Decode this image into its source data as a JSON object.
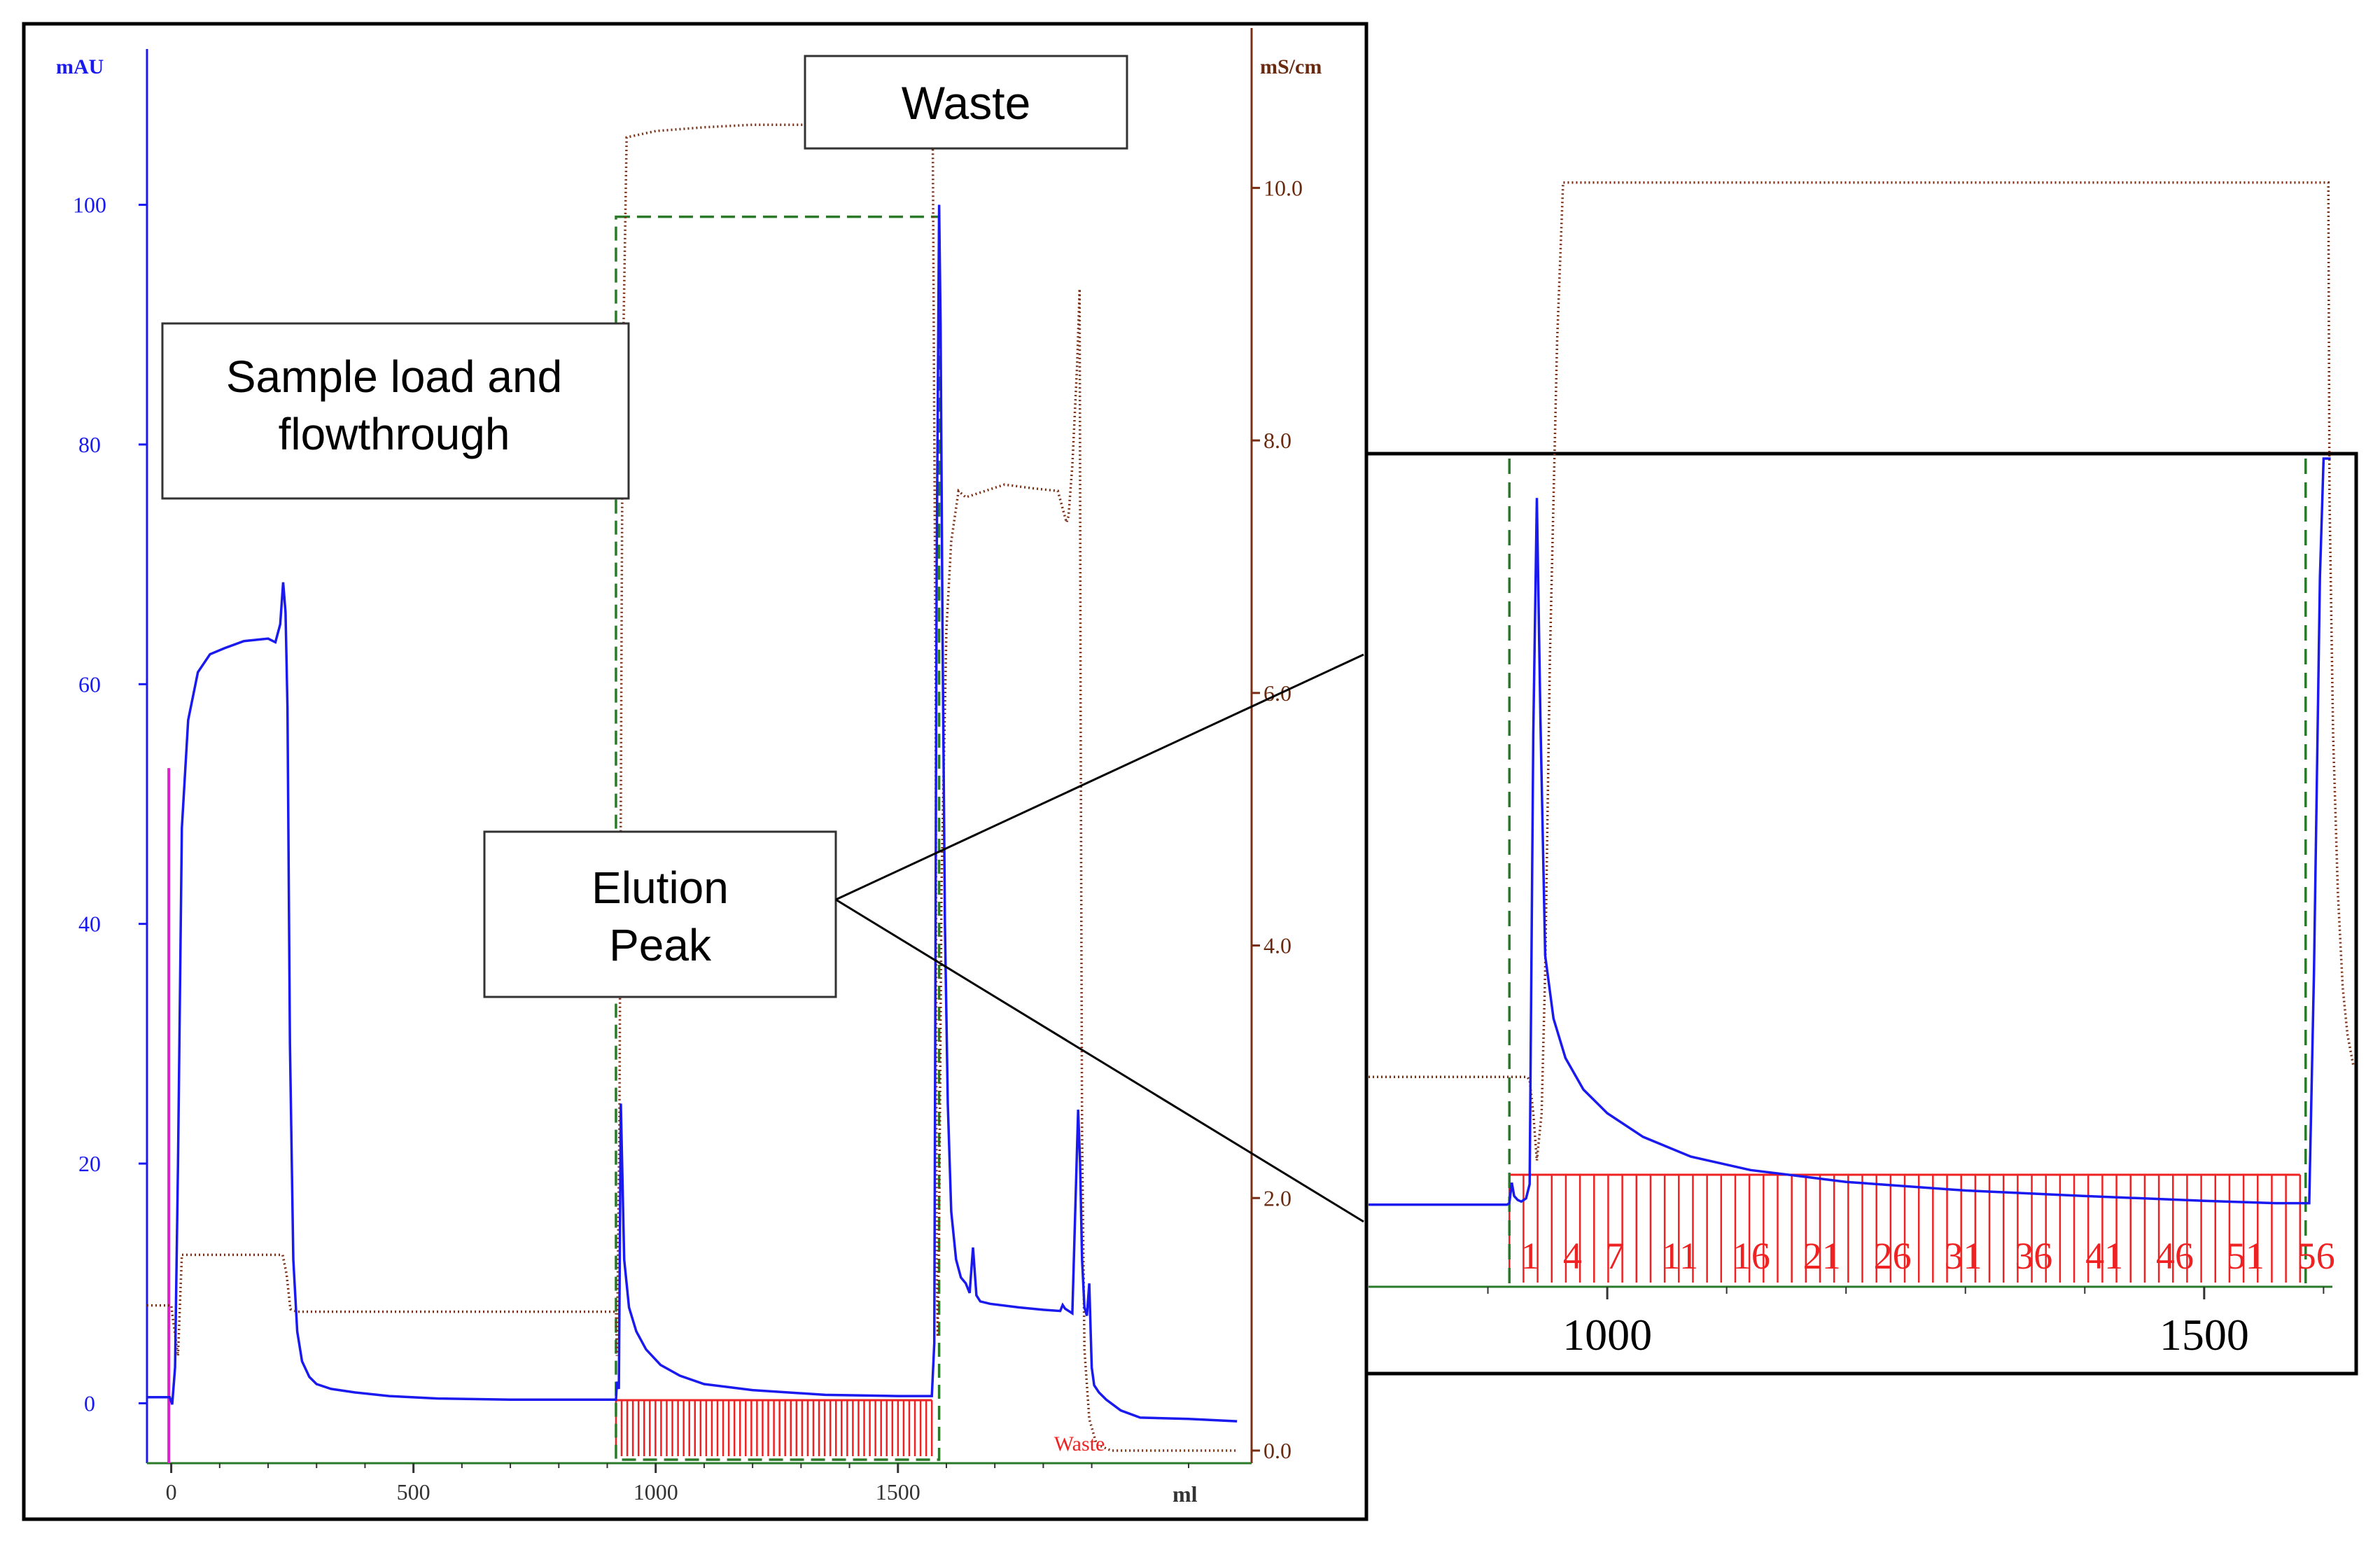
{
  "colors": {
    "uv": "#1a1aee",
    "conductivity": "#7a2e14",
    "fractions": "#ee2222",
    "dashed_box": "#2a7a2a",
    "injection": "#dd22cc",
    "left_axis_text": "#1a1aee",
    "right_axis_text": "#6a2a10"
  },
  "callouts": {
    "waste_top": "Waste",
    "sample_load_line1": "Sample load and",
    "sample_load_line2": "flowthrough",
    "elution_line1": "Elution",
    "elution_line2": "Peak"
  },
  "chart_data": [
    {
      "type": "line",
      "title": "",
      "xlabel": "ml",
      "ylabel": "mAU",
      "y2label": "mS/cm",
      "xlim": [
        -50,
        2230
      ],
      "ylim": [
        -5,
        113
      ],
      "y2lim": [
        -0.1,
        11.1
      ],
      "x_ticks": [
        0,
        500,
        1000,
        1500
      ],
      "y_ticks": [
        0,
        20,
        40,
        60,
        80,
        100
      ],
      "y2_ticks": [
        "0.0",
        "2.0",
        "4.0",
        "6.0",
        "8.0",
        "10.0"
      ],
      "grid": false,
      "series": [
        {
          "axis": "left",
          "x": [
            -50,
            -10,
            -3,
            2,
            8,
            14,
            22,
            35,
            55,
            80,
            110,
            150,
            200,
            215,
            225,
            231,
            236,
            240,
            245,
            252,
            260,
            270,
            285,
            300,
            330,
            380,
            450,
            550,
            700,
            850,
            918,
            920,
            924,
            928,
            935,
            945,
            960,
            980,
            1010,
            1050,
            1100,
            1200,
            1350,
            1500,
            1570,
            1575,
            1580,
            1585,
            1588,
            1592,
            1597,
            1603,
            1610,
            1620,
            1630,
            1640,
            1648,
            1655,
            1662,
            1670,
            1690,
            1750,
            1800,
            1835,
            1840,
            1845,
            1860,
            1872,
            1876,
            1880,
            1885,
            1890,
            1895,
            1900,
            1905,
            1915,
            1930,
            1960,
            2000,
            2100,
            2200
          ],
          "y": [
            0.5,
            0.5,
            0.5,
            -0.1,
            3,
            20,
            48,
            57,
            61,
            62.5,
            63,
            63.6,
            63.8,
            63.5,
            65,
            68.5,
            66,
            58,
            30,
            12,
            6,
            3.5,
            2.2,
            1.6,
            1.2,
            0.9,
            0.6,
            0.4,
            0.3,
            0.3,
            0.3,
            1.8,
            1.2,
            25,
            12,
            8,
            6,
            4.5,
            3.2,
            2.3,
            1.6,
            1.1,
            0.7,
            0.6,
            0.6,
            5,
            70,
            100,
            90,
            65,
            40,
            25,
            16,
            12,
            10.5,
            10,
            9.2,
            13,
            9,
            8.5,
            8.3,
            8,
            7.8,
            7.7,
            8.2,
            7.9,
            7.5,
            24.5,
            20,
            12,
            8,
            7.3,
            10,
            3,
            1.5,
            0.9,
            0.3,
            -0.6,
            -1.2,
            -1.3,
            -1.5
          ]
        },
        {
          "axis": "right",
          "x": [
            -50,
            0,
            5,
            14,
            22,
            230,
            238,
            246,
            260,
            500,
            800,
            900,
            918,
            920,
            925,
            932,
            940,
            1000,
            1100,
            1200,
            1300,
            1500,
            1560,
            1572,
            1578,
            1580,
            1582,
            1585,
            1590,
            1600,
            1610,
            1625,
            1640,
            1680,
            1720,
            1780,
            1830,
            1848,
            1852,
            1860,
            1870,
            1875,
            1877,
            1880,
            1885,
            1895,
            1910,
            1940,
            2000,
            2100,
            2200
          ],
          "y": [
            1.15,
            1.15,
            1.0,
            0.75,
            1.55,
            1.55,
            1.4,
            1.12,
            1.1,
            1.1,
            1.1,
            1.1,
            1.1,
            0.75,
            2.5,
            8.5,
            10.4,
            10.45,
            10.48,
            10.5,
            10.5,
            10.5,
            10.5,
            10.3,
            6,
            1.5,
            0.9,
            1.8,
            4.5,
            6.5,
            7.2,
            7.6,
            7.55,
            7.6,
            7.65,
            7.62,
            7.6,
            7.35,
            7.4,
            7.8,
            8.6,
            9.2,
            6,
            2.5,
            0.8,
            0.25,
            0.05,
            0.0,
            0.0,
            0.0,
            0.0
          ]
        }
      ],
      "fraction_region": {
        "x_start": 918,
        "x_end": 1570,
        "label": "Waste",
        "label_x": 1880
      },
      "dashed_box": {
        "x_start": 918,
        "x_end": 1585,
        "y_top": 99
      },
      "injection_mark": {
        "x": -5,
        "y_top": 53
      }
    },
    {
      "type": "line",
      "title": "",
      "xlim": [
        800,
        1625
      ],
      "ylim": [
        -10,
        95
      ],
      "x_ticks": [
        1000,
        1500
      ],
      "fraction_labels": [
        "1",
        "4",
        "7",
        "11",
        "16",
        "21",
        "26",
        "31",
        "36",
        "41",
        "46",
        "51",
        "56"
      ],
      "dashed_lines": [
        918,
        1585
      ],
      "series": [
        {
          "axis": "left",
          "x": [
            800,
            850,
            900,
            916,
            918,
            920,
            922,
            925,
            928,
            932,
            935,
            938,
            941,
            944,
            948,
            955,
            965,
            980,
            1000,
            1030,
            1070,
            1120,
            1200,
            1300,
            1400,
            1500,
            1560,
            1588,
            1592,
            1597,
            1600,
            1606
          ],
          "y": [
            0.4,
            0.4,
            0.4,
            0.4,
            0.6,
            3.2,
            1.5,
            1,
            0.8,
            1.2,
            3,
            60,
            90,
            62,
            32,
            24,
            19,
            15,
            12,
            9,
            6.5,
            4.8,
            3.3,
            2.2,
            1.5,
            0.9,
            0.6,
            0.6,
            30,
            80,
            95,
            95
          ]
        },
        {
          "axis": "right",
          "x": [
            800,
            850,
            900,
            933,
            935,
            938,
            941,
            945,
            948,
            952,
            958,
            963,
            968,
            975,
            990,
            1050,
            1200,
            1400,
            1550,
            1598,
            1602,
            1604,
            1605,
            1608,
            1612,
            1616,
            1620,
            1625
          ],
          "y": [
            16.6,
            16.6,
            16.6,
            16.6,
            16.2,
            12,
            6,
            12,
            30,
            70,
            110,
            130,
            130,
            130,
            130,
            130,
            130,
            130,
            130,
            130,
            130,
            130,
            90,
            60,
            40,
            28,
            22,
            18
          ]
        }
      ]
    }
  ]
}
